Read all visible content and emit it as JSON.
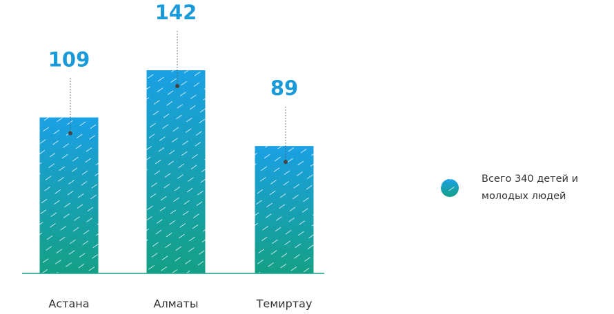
{
  "chart_data": {
    "type": "bar",
    "categories": [
      "Астана",
      "Алматы",
      "Темиртау"
    ],
    "series": [
      {
        "name": "Всего 340 детей и молодых людей",
        "gradient": [
          "#1ba0e4",
          "#14a085"
        ],
        "values": [
          109,
          142,
          89
        ]
      }
    ],
    "label_color": "#1a9ad8"
  }
}
